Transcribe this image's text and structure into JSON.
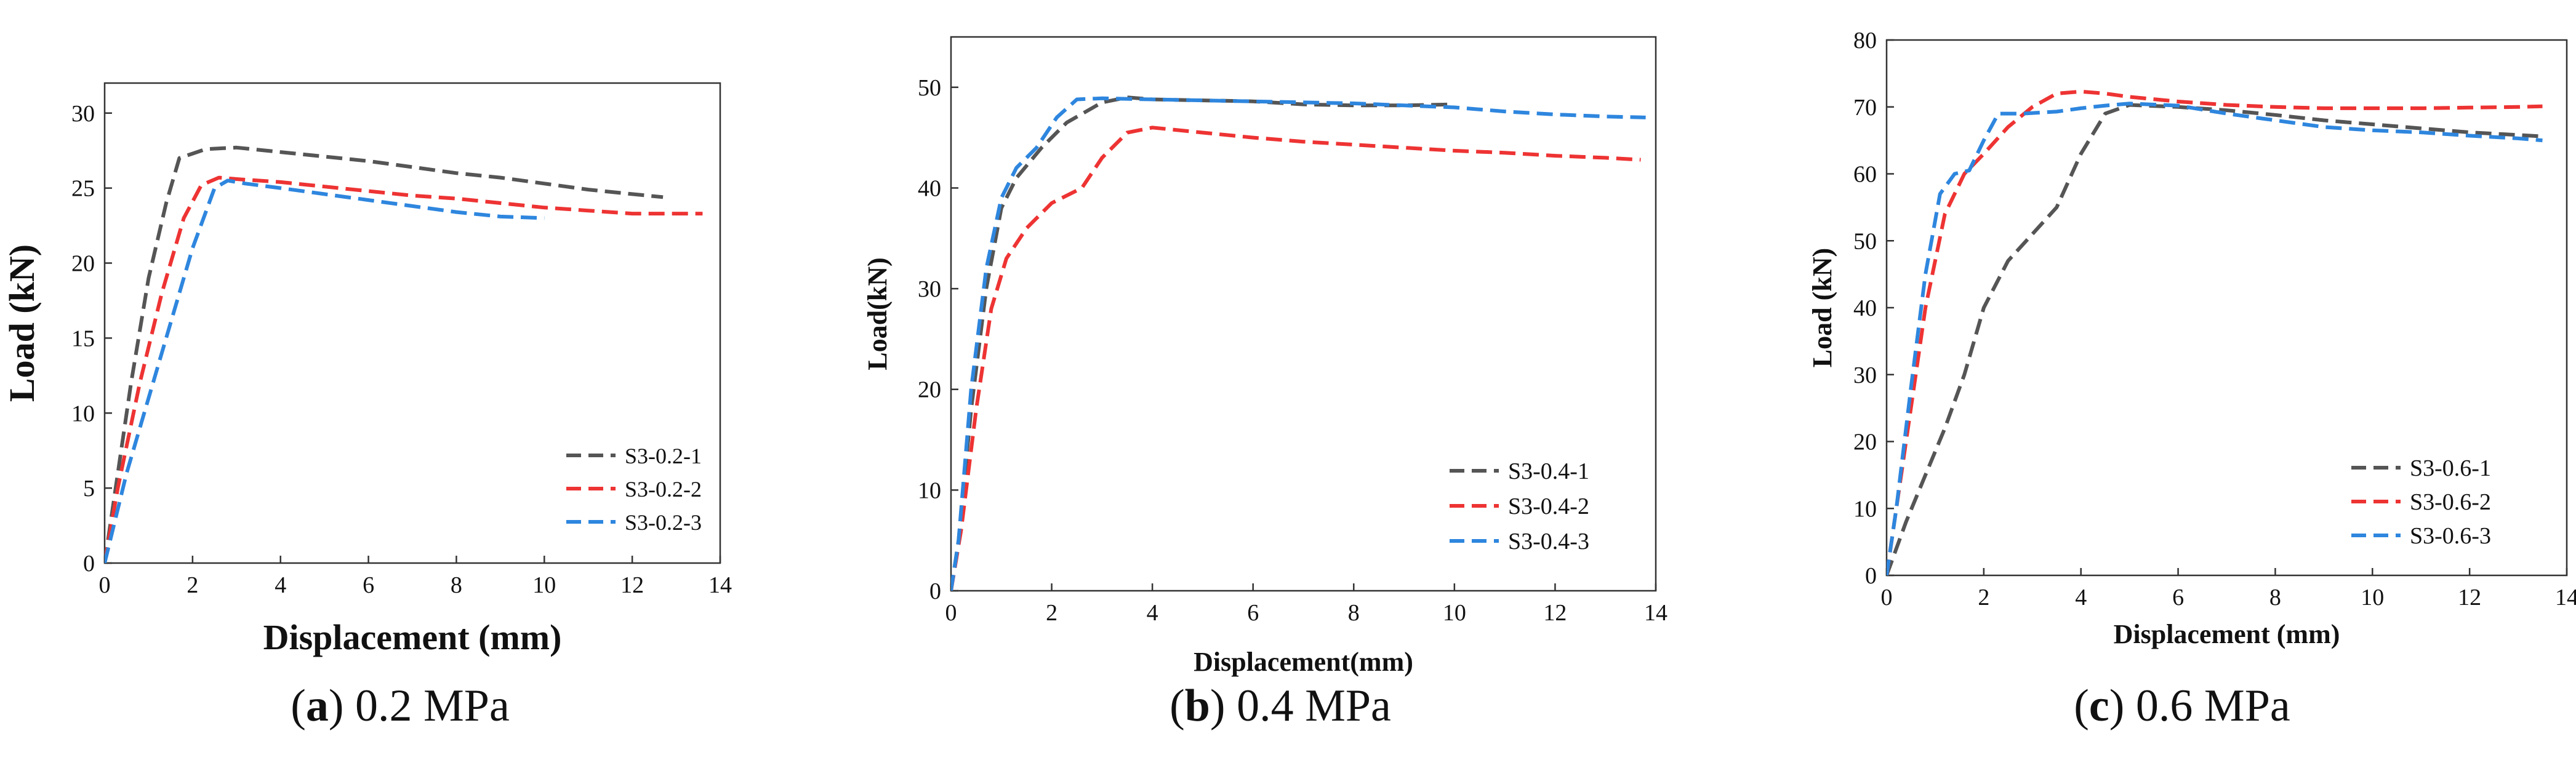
{
  "chart_data": [
    {
      "type": "line",
      "panel": "a",
      "caption": {
        "letter": "a",
        "pressure": "0.2 MPa"
      },
      "xlabel": "Displacement (mm)",
      "ylabel": "Load (kN)",
      "xlim": [
        0,
        14
      ],
      "ylim": [
        0,
        32
      ],
      "xticks": [
        0,
        2,
        4,
        6,
        8,
        10,
        12,
        14
      ],
      "yticks": [
        0,
        5,
        10,
        15,
        20,
        25,
        30
      ],
      "grid": false,
      "legend": "lower-right",
      "series": [
        {
          "name": "S3-0.2-1",
          "color": "#555555",
          "x": [
            0,
            0.2,
            0.6,
            1.0,
            1.4,
            1.7,
            2.0,
            2.3,
            3.0,
            4.0,
            5.0,
            6.0,
            7.0,
            8.0,
            9.0,
            10.0,
            11.0,
            12.0,
            12.7
          ],
          "y": [
            0,
            4,
            12,
            19,
            24,
            27,
            27.3,
            27.6,
            27.7,
            27.4,
            27.1,
            26.8,
            26.4,
            26.0,
            25.7,
            25.3,
            24.9,
            24.6,
            24.4
          ]
        },
        {
          "name": "S3-0.2-2",
          "color": "#ee3333",
          "x": [
            0,
            0.3,
            0.8,
            1.3,
            1.8,
            2.2,
            2.6,
            3.0,
            4.0,
            5.0,
            6.0,
            7.0,
            8.0,
            9.0,
            10.0,
            11.0,
            12.0,
            13.0,
            13.6
          ],
          "y": [
            0,
            5,
            12,
            18,
            23,
            25.2,
            25.7,
            25.6,
            25.4,
            25.1,
            24.8,
            24.5,
            24.3,
            24.0,
            23.7,
            23.5,
            23.3,
            23.3,
            23.3
          ]
        },
        {
          "name": "S3-0.2-3",
          "color": "#2e86de",
          "x": [
            0,
            0.5,
            1.0,
            1.5,
            2.0,
            2.5,
            2.8,
            3.2,
            4.0,
            5.0,
            6.0,
            7.0,
            8.0,
            9.0,
            10.0
          ],
          "y": [
            0,
            6,
            11,
            16,
            21,
            25,
            25.5,
            25.3,
            25.0,
            24.6,
            24.2,
            23.8,
            23.4,
            23.1,
            23.0
          ]
        }
      ]
    },
    {
      "type": "line",
      "panel": "b",
      "caption": {
        "letter": "b",
        "pressure": "0.4 MPa"
      },
      "xlabel": "Displacement(mm)",
      "ylabel": "Load(kN)",
      "xlim": [
        0,
        14
      ],
      "ylim": [
        0,
        55
      ],
      "xticks": [
        0,
        2,
        4,
        6,
        8,
        10,
        12,
        14
      ],
      "yticks": [
        0,
        10,
        20,
        30,
        40,
        50
      ],
      "grid": false,
      "legend": "lower-right",
      "series": [
        {
          "name": "S3-0.4-1",
          "color": "#555555",
          "x": [
            0,
            0.15,
            0.4,
            0.7,
            1.0,
            1.3,
            1.8,
            2.3,
            3.0,
            3.5,
            4.0,
            5.0,
            6.0,
            7.0,
            8.0,
            9.0,
            10.0
          ],
          "y": [
            0,
            5,
            18,
            30,
            38,
            41,
            44,
            46.5,
            48.5,
            49,
            48.8,
            48.7,
            48.6,
            48.3,
            48.2,
            48.2,
            48.3
          ]
        },
        {
          "name": "S3-0.4-2",
          "color": "#ee3333",
          "x": [
            0,
            0.2,
            0.5,
            0.8,
            1.1,
            1.5,
            2.0,
            2.6,
            3.0,
            3.5,
            4.0,
            5.0,
            6.0,
            7.0,
            8.0,
            9.0,
            10.0,
            11.0,
            12.0,
            13.0,
            13.7
          ],
          "y": [
            0,
            6,
            18,
            28,
            33,
            36,
            38.5,
            40,
            43,
            45.5,
            46,
            45.5,
            45,
            44.6,
            44.3,
            44,
            43.7,
            43.5,
            43.2,
            43,
            42.8
          ]
        },
        {
          "name": "S3-0.4-3",
          "color": "#2e86de",
          "x": [
            0,
            0.15,
            0.4,
            0.7,
            1.0,
            1.3,
            1.7,
            2.1,
            2.5,
            3.0,
            4.0,
            5.0,
            6.0,
            7.0,
            8.0,
            9.0,
            10.0,
            11.0,
            12.0,
            13.0,
            13.8
          ],
          "y": [
            0,
            5,
            20,
            32,
            39,
            42,
            44,
            47,
            48.8,
            48.9,
            48.8,
            48.7,
            48.6,
            48.5,
            48.4,
            48.2,
            48.0,
            47.6,
            47.3,
            47.1,
            47.0
          ]
        }
      ]
    },
    {
      "type": "line",
      "panel": "c",
      "caption": {
        "letter": "c",
        "pressure": "0.6 MPa"
      },
      "xlabel": "Displacement (mm)",
      "ylabel": "Load (kN)",
      "xlim": [
        0,
        14
      ],
      "ylim": [
        0,
        80
      ],
      "xticks": [
        0,
        2,
        4,
        6,
        8,
        10,
        12,
        14
      ],
      "yticks": [
        0,
        10,
        20,
        30,
        40,
        50,
        60,
        70,
        80
      ],
      "grid": false,
      "legend": "lower-right",
      "series": [
        {
          "name": "S3-0.6-1",
          "color": "#555555",
          "x": [
            0,
            0.4,
            0.8,
            1.2,
            1.6,
            2.0,
            2.5,
            3.0,
            3.5,
            4.0,
            4.5,
            5.0,
            6.0,
            7.0,
            8.0,
            9.0,
            10.0,
            11.0,
            12.0,
            13.0,
            13.5
          ],
          "y": [
            0,
            8,
            15,
            22,
            30,
            40,
            47,
            51,
            55,
            63,
            69,
            70.3,
            70,
            69.5,
            68.8,
            68,
            67.4,
            66.8,
            66.2,
            65.8,
            65.6
          ]
        },
        {
          "name": "S3-0.6-2",
          "color": "#ee3333",
          "x": [
            0,
            0.2,
            0.5,
            0.8,
            1.2,
            1.6,
            2.0,
            2.5,
            3.0,
            3.5,
            4.0,
            4.5,
            5.0,
            6.0,
            7.0,
            8.0,
            9.0,
            10.0,
            11.0,
            12.0,
            13.0,
            13.5
          ],
          "y": [
            0,
            10,
            25,
            40,
            54,
            60,
            63,
            67,
            70,
            72,
            72.3,
            72,
            71.5,
            70.8,
            70.3,
            70.0,
            69.8,
            69.8,
            69.8,
            69.9,
            70.0,
            70.1
          ]
        },
        {
          "name": "S3-0.6-3",
          "color": "#2e86de",
          "x": [
            0,
            0.2,
            0.5,
            0.8,
            1.1,
            1.4,
            1.7,
            2.0,
            2.3,
            2.8,
            3.5,
            4.0,
            4.5,
            5.0,
            6.0,
            7.0,
            8.0,
            9.0,
            10.0,
            11.0,
            12.0,
            13.0,
            13.5
          ],
          "y": [
            0,
            10,
            28,
            45,
            57,
            60,
            60.5,
            65,
            69,
            69,
            69.3,
            69.8,
            70.2,
            70.5,
            70.2,
            69,
            68,
            67,
            66.5,
            66.2,
            65.7,
            65.3,
            65.0
          ]
        }
      ]
    }
  ]
}
